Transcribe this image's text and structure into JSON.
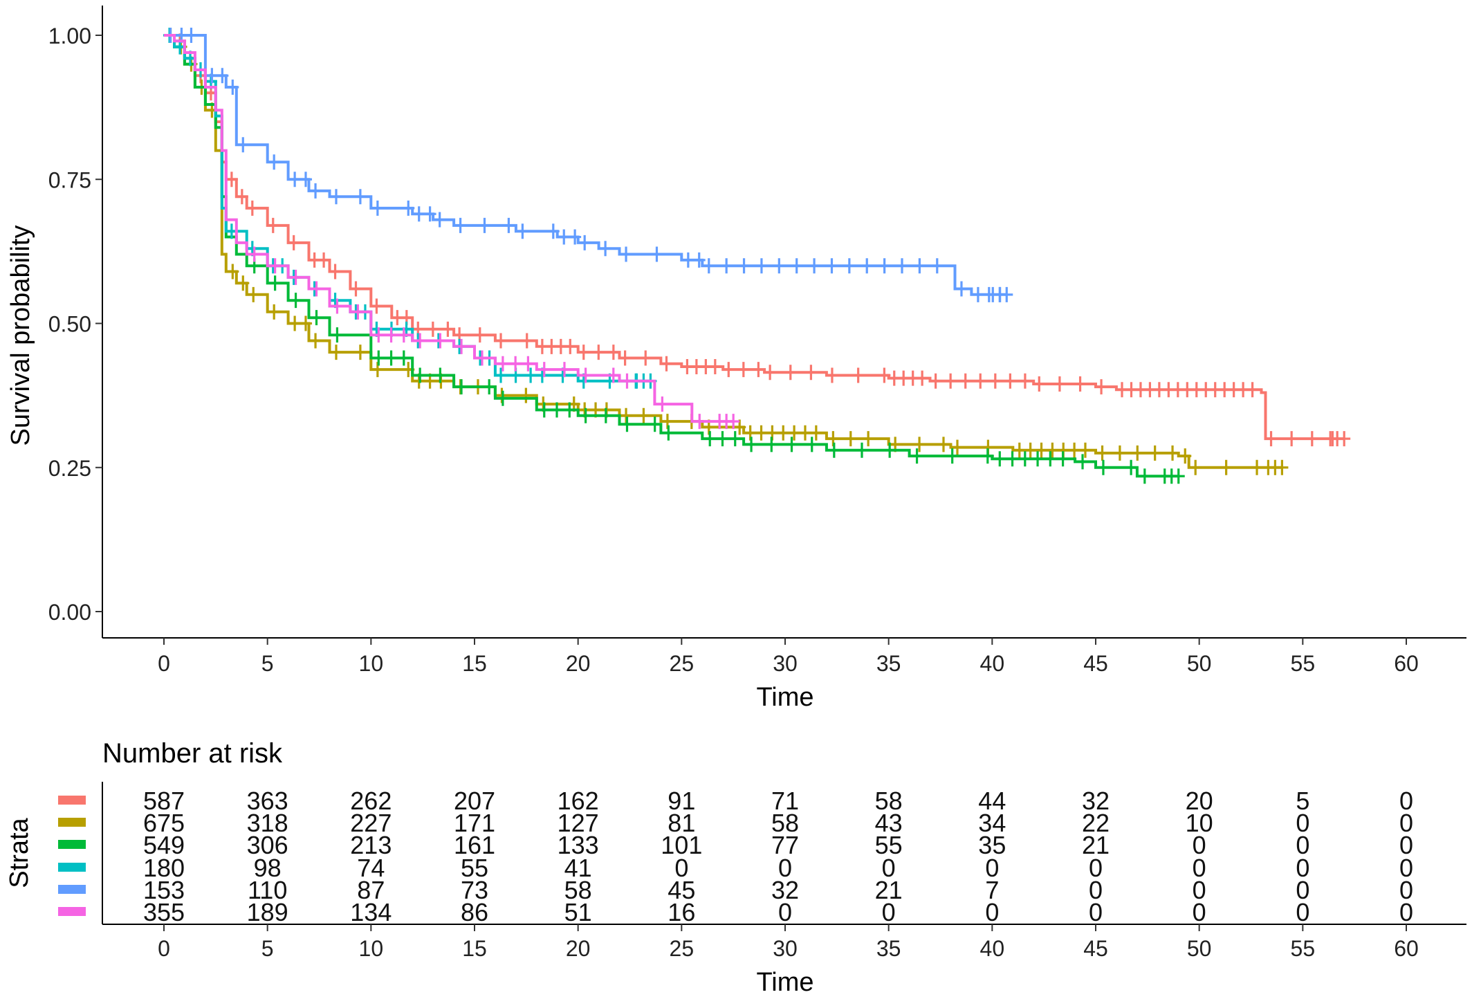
{
  "chart_data": [
    {
      "type": "line",
      "subtype": "kaplan-meier-step",
      "title": "",
      "xlabel": "Time",
      "ylabel": "Survival probability",
      "xlim": [
        0,
        60
      ],
      "ylim": [
        0,
        1
      ],
      "xticks": [
        "0",
        "5",
        "10",
        "15",
        "20",
        "25",
        "30",
        "35",
        "40",
        "45",
        "50",
        "55",
        "60"
      ],
      "yticks": [
        "0.00",
        "0.25",
        "0.50",
        "0.75",
        "1.00"
      ],
      "grid": false,
      "legend": "none",
      "censor_marks": true,
      "series": [
        {
          "color": "#F8766D",
          "points": [
            [
              0,
              1.0
            ],
            [
              0.5,
              0.99
            ],
            [
              1,
              0.96
            ],
            [
              1.5,
              0.93
            ],
            [
              2,
              0.9
            ],
            [
              2.5,
              0.85
            ],
            [
              2.8,
              0.78
            ],
            [
              3,
              0.75
            ],
            [
              3.5,
              0.72
            ],
            [
              4,
              0.7
            ],
            [
              5,
              0.67
            ],
            [
              6,
              0.64
            ],
            [
              7,
              0.61
            ],
            [
              8,
              0.59
            ],
            [
              9,
              0.56
            ],
            [
              10,
              0.53
            ],
            [
              11,
              0.51
            ],
            [
              12,
              0.49
            ],
            [
              14,
              0.48
            ],
            [
              16,
              0.47
            ],
            [
              18,
              0.46
            ],
            [
              20,
              0.45
            ],
            [
              22,
              0.44
            ],
            [
              24,
              0.43
            ],
            [
              25,
              0.425
            ],
            [
              27,
              0.42
            ],
            [
              29,
              0.415
            ],
            [
              32,
              0.41
            ],
            [
              35,
              0.405
            ],
            [
              37,
              0.4
            ],
            [
              42,
              0.395
            ],
            [
              45,
              0.39
            ],
            [
              46,
              0.385
            ],
            [
              53,
              0.38
            ],
            [
              53.2,
              0.3
            ],
            [
              57,
              0.3
            ]
          ]
        },
        {
          "color": "#B79F00",
          "points": [
            [
              0,
              1.0
            ],
            [
              0.5,
              0.98
            ],
            [
              1,
              0.95
            ],
            [
              1.5,
              0.91
            ],
            [
              2,
              0.87
            ],
            [
              2.5,
              0.8
            ],
            [
              2.8,
              0.62
            ],
            [
              3,
              0.59
            ],
            [
              3.5,
              0.57
            ],
            [
              4,
              0.55
            ],
            [
              5,
              0.52
            ],
            [
              6,
              0.5
            ],
            [
              7,
              0.47
            ],
            [
              8,
              0.45
            ],
            [
              10,
              0.42
            ],
            [
              12,
              0.4
            ],
            [
              14,
              0.39
            ],
            [
              16,
              0.375
            ],
            [
              18,
              0.36
            ],
            [
              20,
              0.35
            ],
            [
              22,
              0.34
            ],
            [
              24,
              0.33
            ],
            [
              26,
              0.32
            ],
            [
              28,
              0.31
            ],
            [
              32,
              0.3
            ],
            [
              35,
              0.29
            ],
            [
              38,
              0.285
            ],
            [
              41,
              0.28
            ],
            [
              45,
              0.275
            ],
            [
              49,
              0.27
            ],
            [
              49.5,
              0.25
            ],
            [
              54,
              0.25
            ]
          ]
        },
        {
          "color": "#00BA38",
          "points": [
            [
              0,
              1.0
            ],
            [
              0.5,
              0.98
            ],
            [
              1,
              0.95
            ],
            [
              1.5,
              0.91
            ],
            [
              2,
              0.88
            ],
            [
              2.5,
              0.84
            ],
            [
              2.8,
              0.72
            ],
            [
              3,
              0.65
            ],
            [
              3.5,
              0.62
            ],
            [
              4,
              0.6
            ],
            [
              5,
              0.57
            ],
            [
              6,
              0.54
            ],
            [
              7,
              0.51
            ],
            [
              8,
              0.48
            ],
            [
              10,
              0.44
            ],
            [
              12,
              0.41
            ],
            [
              14,
              0.39
            ],
            [
              16,
              0.37
            ],
            [
              18,
              0.35
            ],
            [
              20,
              0.34
            ],
            [
              22,
              0.325
            ],
            [
              24,
              0.31
            ],
            [
              26,
              0.3
            ],
            [
              28,
              0.29
            ],
            [
              32,
              0.28
            ],
            [
              36,
              0.27
            ],
            [
              40,
              0.265
            ],
            [
              44,
              0.26
            ],
            [
              45,
              0.25
            ],
            [
              47,
              0.235
            ],
            [
              49,
              0.235
            ]
          ]
        },
        {
          "color": "#00BFC4",
          "points": [
            [
              0,
              1.0
            ],
            [
              0.5,
              0.98
            ],
            [
              1,
              0.96
            ],
            [
              1.5,
              0.94
            ],
            [
              2,
              0.92
            ],
            [
              2.5,
              0.86
            ],
            [
              2.8,
              0.7
            ],
            [
              3,
              0.66
            ],
            [
              4,
              0.63
            ],
            [
              5,
              0.6
            ],
            [
              6,
              0.58
            ],
            [
              7,
              0.56
            ],
            [
              8,
              0.54
            ],
            [
              9,
              0.52
            ],
            [
              10,
              0.49
            ],
            [
              12,
              0.47
            ],
            [
              14,
              0.46
            ],
            [
              15,
              0.44
            ],
            [
              16,
              0.41
            ],
            [
              18,
              0.41
            ],
            [
              20,
              0.4
            ],
            [
              23.5,
              0.4
            ]
          ]
        },
        {
          "color": "#619CFF",
          "points": [
            [
              0,
              1.0
            ],
            [
              1,
              1.0
            ],
            [
              1.8,
              1.0
            ],
            [
              2,
              0.93
            ],
            [
              2.5,
              0.93
            ],
            [
              3,
              0.91
            ],
            [
              3.5,
              0.81
            ],
            [
              5,
              0.78
            ],
            [
              6,
              0.75
            ],
            [
              7,
              0.73
            ],
            [
              8,
              0.72
            ],
            [
              10,
              0.7
            ],
            [
              12,
              0.69
            ],
            [
              13,
              0.68
            ],
            [
              14,
              0.67
            ],
            [
              17,
              0.66
            ],
            [
              19,
              0.65
            ],
            [
              20,
              0.64
            ],
            [
              21,
              0.63
            ],
            [
              22,
              0.62
            ],
            [
              25,
              0.61
            ],
            [
              26,
              0.6
            ],
            [
              38,
              0.6
            ],
            [
              38.2,
              0.56
            ],
            [
              39,
              0.55
            ],
            [
              40.7,
              0.55
            ]
          ]
        },
        {
          "color": "#F564E3",
          "points": [
            [
              0,
              1.0
            ],
            [
              0.5,
              0.99
            ],
            [
              1,
              0.97
            ],
            [
              1.5,
              0.94
            ],
            [
              2,
              0.91
            ],
            [
              2.5,
              0.87
            ],
            [
              2.8,
              0.8
            ],
            [
              3,
              0.68
            ],
            [
              3.5,
              0.64
            ],
            [
              4,
              0.62
            ],
            [
              5,
              0.6
            ],
            [
              6,
              0.58
            ],
            [
              7,
              0.56
            ],
            [
              8,
              0.53
            ],
            [
              9,
              0.52
            ],
            [
              10,
              0.48
            ],
            [
              12,
              0.47
            ],
            [
              14,
              0.46
            ],
            [
              15,
              0.44
            ],
            [
              16,
              0.43
            ],
            [
              18,
              0.42
            ],
            [
              20,
              0.41
            ],
            [
              22,
              0.4
            ],
            [
              23.5,
              0.4
            ],
            [
              23.7,
              0.36
            ],
            [
              25,
              0.36
            ],
            [
              25.5,
              0.33
            ],
            [
              27.5,
              0.33
            ]
          ]
        }
      ]
    },
    {
      "type": "table",
      "title": "Number at risk",
      "xlabel": "Time",
      "ylabel": "Strata",
      "xlim": [
        0,
        60
      ],
      "xticks": [
        "0",
        "5",
        "10",
        "15",
        "20",
        "25",
        "30",
        "35",
        "40",
        "45",
        "50",
        "55",
        "60"
      ],
      "rows": [
        {
          "color": "#F8766D",
          "values": [
            "587",
            "363",
            "262",
            "207",
            "162",
            "91",
            "71",
            "58",
            "44",
            "32",
            "20",
            "5",
            "0"
          ]
        },
        {
          "color": "#B79F00",
          "values": [
            "675",
            "318",
            "227",
            "171",
            "127",
            "81",
            "58",
            "43",
            "34",
            "22",
            "10",
            "0",
            "0"
          ]
        },
        {
          "color": "#00BA38",
          "values": [
            "549",
            "306",
            "213",
            "161",
            "133",
            "101",
            "77",
            "55",
            "35",
            "21",
            "0",
            "0",
            "0"
          ]
        },
        {
          "color": "#00BFC4",
          "values": [
            "180",
            "98",
            "74",
            "55",
            "41",
            "0",
            "0",
            "0",
            "0",
            "0",
            "0",
            "0",
            "0"
          ]
        },
        {
          "color": "#619CFF",
          "values": [
            "153",
            "110",
            "87",
            "73",
            "58",
            "45",
            "32",
            "21",
            "7",
            "0",
            "0",
            "0",
            "0"
          ]
        },
        {
          "color": "#F564E3",
          "values": [
            "355",
            "189",
            "134",
            "86",
            "51",
            "16",
            "0",
            "0",
            "0",
            "0",
            "0",
            "0",
            "0"
          ]
        }
      ]
    }
  ]
}
